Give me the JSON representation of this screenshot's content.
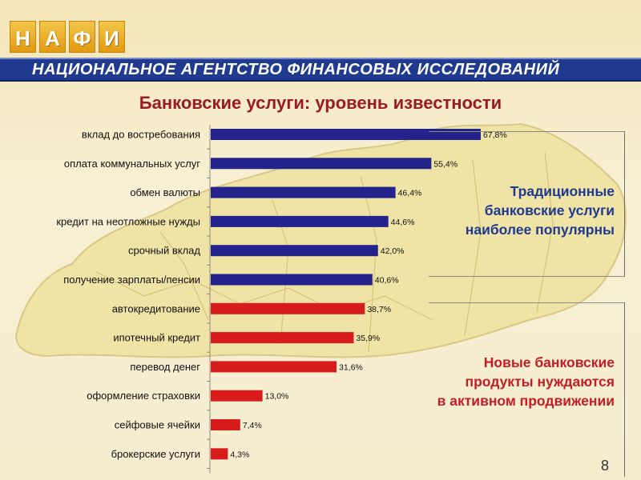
{
  "logo": {
    "letters": [
      "Н",
      "А",
      "Ф",
      "И"
    ]
  },
  "banner": {
    "text": "НАЦИОНАЛЬНОЕ АГЕНТСТВО ФИНАНСОВЫХ ИССЛЕДОВАНИЙ"
  },
  "slide": {
    "page_number": "8"
  },
  "panels": {
    "traditional": {
      "lines": [
        "Традиционные",
        "банковские услуги",
        "наиболее популярны"
      ]
    },
    "new_products": {
      "lines": [
        "Новые банковские",
        "продукты нуждаются",
        "в активном продвижении"
      ]
    }
  },
  "colors": {
    "blue_bars": "#24238b",
    "red_bars": "#d81b1b",
    "title": "#9b1b23",
    "banner": "#1f3a8f"
  },
  "chart_data": {
    "type": "bar",
    "orientation": "horizontal",
    "title": "Банковские услуги: уровень известности",
    "categories": [
      "вклад до востребования",
      "оплата коммунальных услуг",
      "обмен валюты",
      "кредит на неотложные нужды",
      "срочный вклад",
      "получение зарплаты/пенсии",
      "автокредитование",
      "ипотечный кредит",
      "перевод денег",
      "оформление страховки",
      "сейфовые ячейки",
      "брокерские услуги"
    ],
    "values": [
      67.8,
      55.4,
      46.4,
      44.6,
      42.0,
      40.6,
      38.7,
      35.9,
      31.6,
      13.0,
      7.4,
      4.3
    ],
    "value_labels": [
      "67,8%",
      "55,4%",
      "46,4%",
      "44,6%",
      "42,0%",
      "40,6%",
      "38,7%",
      "35,9%",
      "31,6%",
      "13,0%",
      "7,4%",
      "4,3%"
    ],
    "bar_groups": [
      "blue",
      "blue",
      "blue",
      "blue",
      "blue",
      "blue",
      "red",
      "red",
      "red",
      "red",
      "red",
      "red"
    ],
    "xlim": [
      0,
      100
    ],
    "grid": false,
    "legend": "none"
  }
}
